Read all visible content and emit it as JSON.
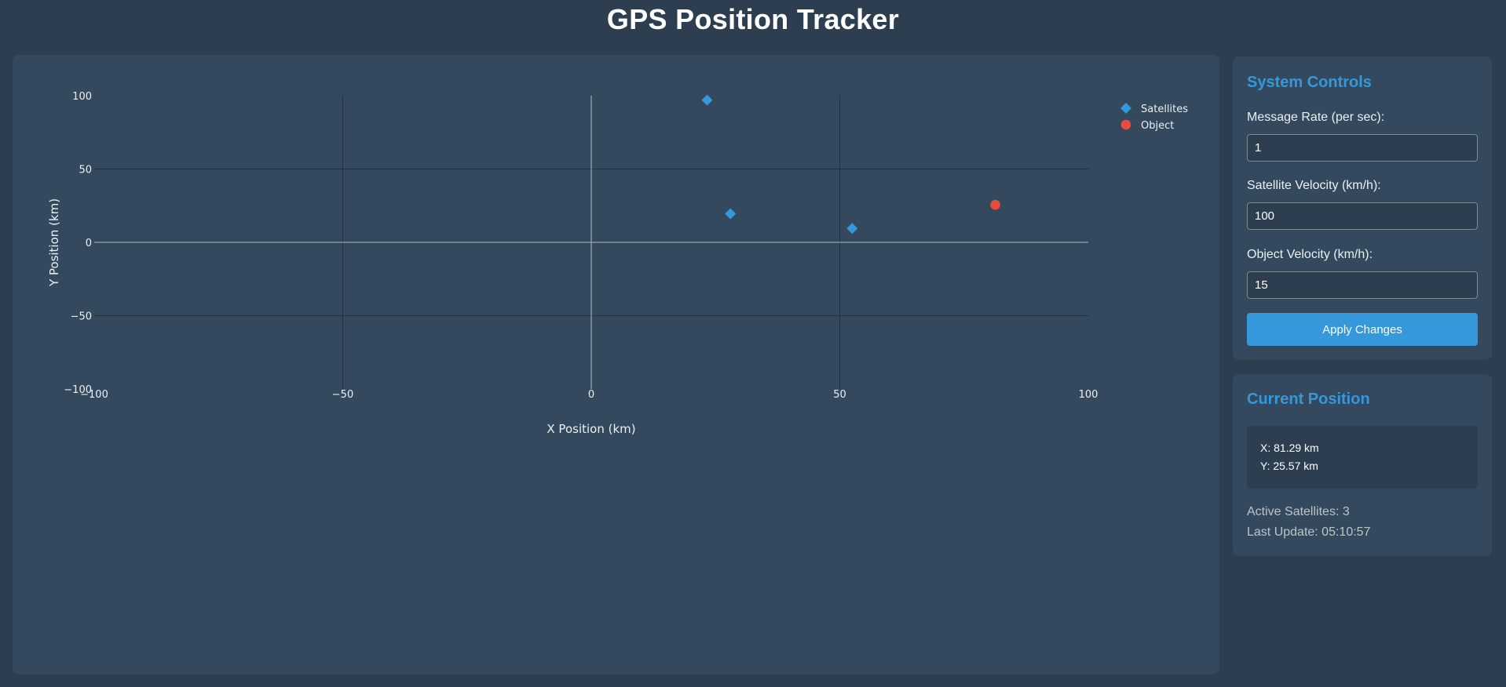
{
  "page": {
    "title": "GPS Position Tracker"
  },
  "chart_data": {
    "type": "scatter",
    "title": "",
    "xlabel": "X Position (km)",
    "ylabel": "Y Position (km)",
    "xlim": [
      -100,
      100
    ],
    "ylim": [
      -100,
      100
    ],
    "x_ticks": [
      -100,
      -50,
      0,
      50,
      100
    ],
    "y_ticks": [
      -100,
      -50,
      0,
      50,
      100
    ],
    "x_tick_labels": [
      "−100",
      "−50",
      "0",
      "50",
      "100"
    ],
    "y_tick_labels": [
      "−100",
      "−50",
      "0",
      "50",
      "100"
    ],
    "grid": true,
    "legend_position": "top-right",
    "series": [
      {
        "name": "Satellites",
        "marker": "diamond",
        "color": "#3498db",
        "points": [
          {
            "x": 23.3,
            "y": 97
          },
          {
            "x": 28,
            "y": 19.5
          },
          {
            "x": 52.5,
            "y": 9.5
          }
        ]
      },
      {
        "name": "Object",
        "marker": "circle",
        "color": "#e74c3c",
        "points": [
          {
            "x": 81.29,
            "y": 25.57
          }
        ]
      }
    ]
  },
  "controls": {
    "title": "System Controls",
    "message_rate_label": "Message Rate (per sec):",
    "message_rate_value": "1",
    "satellite_velocity_label": "Satellite Velocity (km/h):",
    "satellite_velocity_value": "100",
    "object_velocity_label": "Object Velocity (km/h):",
    "object_velocity_value": "15",
    "apply_label": "Apply Changes"
  },
  "position": {
    "title": "Current Position",
    "x_text": "X: 81.29 km",
    "y_text": "Y: 25.57 km",
    "active_satellites": "Active Satellites: 3",
    "last_update": "Last Update: 05:10:57"
  },
  "colors": {
    "background": "#2c3e50",
    "panel": "#34495e",
    "accent": "#3498db",
    "object": "#e74c3c"
  }
}
